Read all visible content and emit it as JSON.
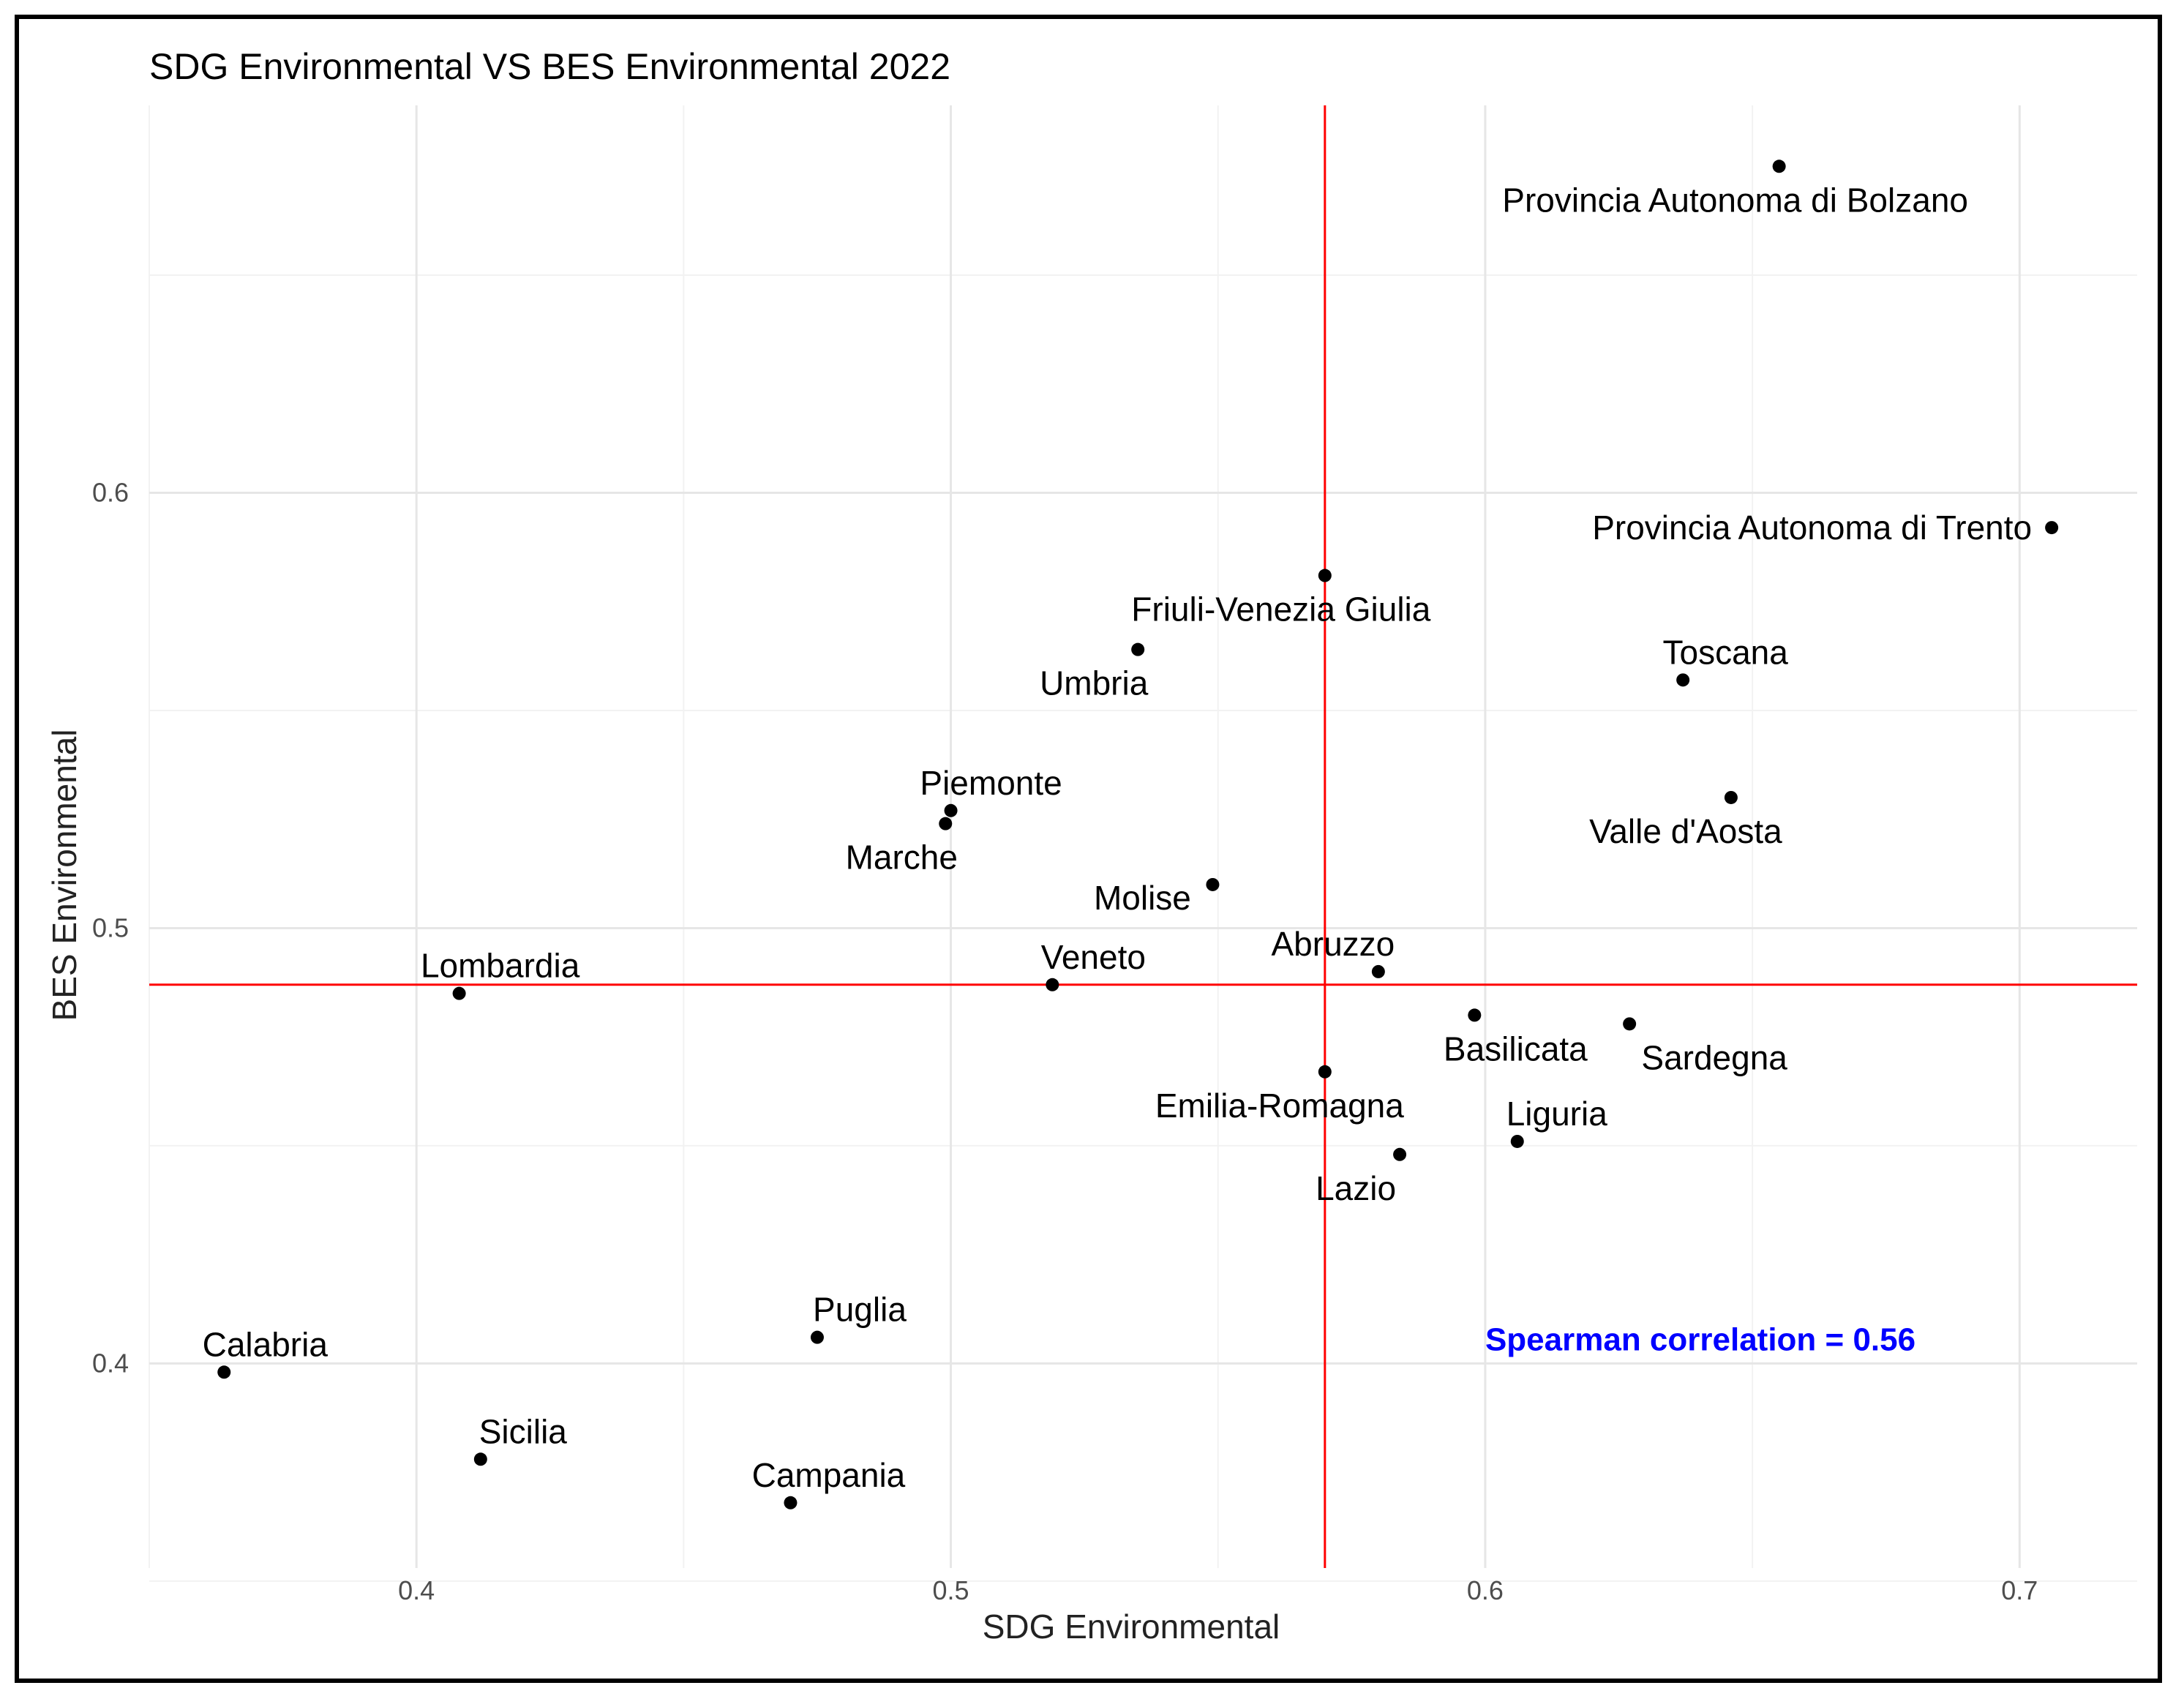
{
  "chart_data": {
    "type": "scatter",
    "title": "SDG Environmental VS BES Environmental 2022",
    "xlabel": "SDG Environmental",
    "ylabel": "BES Environmental",
    "xlim": [
      0.35,
      0.722
    ],
    "ylim": [
      0.353,
      0.689
    ],
    "x_ticks": [
      0.4,
      0.5,
      0.6,
      0.7
    ],
    "x_tick_labels": [
      "0.4",
      "0.5",
      "0.6",
      "0.7"
    ],
    "y_ticks": [
      0.4,
      0.5,
      0.6
    ],
    "y_tick_labels": [
      "0.4",
      "0.5",
      "0.6"
    ],
    "grid": true,
    "reference_lines": {
      "vertical_x": 0.57,
      "horizontal_y": 0.487,
      "color": "#ff0000"
    },
    "annotation": {
      "text": "Spearman correlation = 0.56",
      "color": "#0000ff",
      "x": 0.6,
      "y": 0.403
    },
    "point_color": "#000000",
    "points": [
      {
        "label": "Provincia Autonoma di Bolzano",
        "x": 0.655,
        "y": 0.675
      },
      {
        "label": "Provincia Autonoma di Trento",
        "x": 0.706,
        "y": 0.592
      },
      {
        "label": "Friuli-Venezia Giulia",
        "x": 0.57,
        "y": 0.581
      },
      {
        "label": "Umbria",
        "x": 0.535,
        "y": 0.564
      },
      {
        "label": "Toscana",
        "x": 0.637,
        "y": 0.557
      },
      {
        "label": "Piemonte",
        "x": 0.5,
        "y": 0.527
      },
      {
        "label": "Marche",
        "x": 0.499,
        "y": 0.524
      },
      {
        "label": "Valle d'Aosta",
        "x": 0.646,
        "y": 0.53
      },
      {
        "label": "Molise",
        "x": 0.549,
        "y": 0.51
      },
      {
        "label": "Abruzzo",
        "x": 0.58,
        "y": 0.49
      },
      {
        "label": "Veneto",
        "x": 0.519,
        "y": 0.487
      },
      {
        "label": "Lombardia",
        "x": 0.408,
        "y": 0.485
      },
      {
        "label": "Basilicata",
        "x": 0.598,
        "y": 0.48
      },
      {
        "label": "Sardegna",
        "x": 0.627,
        "y": 0.478
      },
      {
        "label": "Emilia-Romagna",
        "x": 0.57,
        "y": 0.467
      },
      {
        "label": "Liguria",
        "x": 0.606,
        "y": 0.451
      },
      {
        "label": "Lazio",
        "x": 0.584,
        "y": 0.448
      },
      {
        "label": "Puglia",
        "x": 0.475,
        "y": 0.406
      },
      {
        "label": "Calabria",
        "x": 0.364,
        "y": 0.398
      },
      {
        "label": "Sicilia",
        "x": 0.412,
        "y": 0.378
      },
      {
        "label": "Campania",
        "x": 0.47,
        "y": 0.368
      }
    ]
  }
}
